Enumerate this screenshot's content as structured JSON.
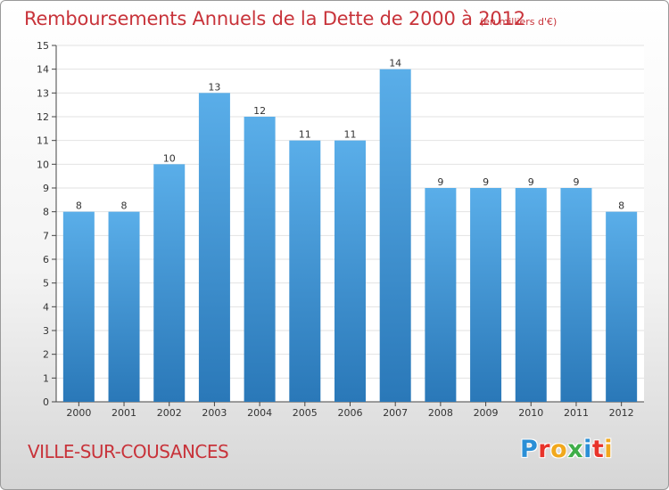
{
  "chart_data": {
    "type": "bar",
    "title": "Remboursements Annuels de la Dette de 2000 à 2012",
    "subtitle": "(en milliers d'€)",
    "xlabel": "",
    "ylabel": "",
    "categories": [
      "2000",
      "2001",
      "2002",
      "2003",
      "2004",
      "2005",
      "2006",
      "2007",
      "2008",
      "2009",
      "2010",
      "2011",
      "2012"
    ],
    "values": [
      8,
      8,
      10,
      13,
      12,
      11,
      11,
      14,
      9,
      9,
      9,
      9,
      8
    ],
    "data_labels": [
      "8",
      "8",
      "10",
      "13",
      "12",
      "11",
      "11",
      "14",
      "9",
      "9",
      "9",
      "9",
      "8"
    ],
    "ylim": [
      0,
      15
    ],
    "yticks": [
      "0",
      "1",
      "2",
      "3",
      "4",
      "5",
      "6",
      "7",
      "8",
      "9",
      "10",
      "11",
      "12",
      "13",
      "14",
      "15"
    ],
    "grid": true,
    "bar_color_top": "#5aaee9",
    "bar_color_bottom": "#2a78b8",
    "title_color": "#c8333a"
  },
  "footer": {
    "location": "VILLE-SUR-COUSANCES"
  },
  "logo": {
    "letters": [
      {
        "char": "P",
        "color": "#2b8fd6"
      },
      {
        "char": "r",
        "color": "#e8332a"
      },
      {
        "char": "o",
        "color": "#f1a81d"
      },
      {
        "char": "x",
        "color": "#3fae49"
      },
      {
        "char": "i",
        "color": "#2b8fd6"
      },
      {
        "char": "t",
        "color": "#e8332a"
      },
      {
        "char": "i",
        "color": "#f1a81d"
      }
    ]
  }
}
